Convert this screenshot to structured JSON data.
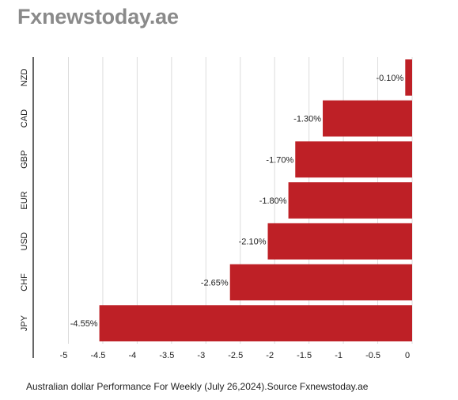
{
  "header": {
    "brand": "Fxnewstoday.ae"
  },
  "caption": "Australian dollar Performance For Weekly (July 26,2024).Source Fxnewstoday.ae",
  "colors": {
    "bar": "#be2026",
    "grid": "#dcdcdc",
    "axis": "#333333",
    "text": "#222222"
  },
  "chart_data": {
    "type": "bar",
    "orientation": "horizontal",
    "categories": [
      "NZD",
      "CAD",
      "GBP",
      "EUR",
      "USD",
      "CHF",
      "JPY"
    ],
    "values": [
      -0.1,
      -1.3,
      -1.7,
      -1.8,
      -2.1,
      -2.65,
      -4.55
    ],
    "data_labels": [
      "-0.10%",
      "-1.30%",
      "-1.70%",
      "-1.80%",
      "-2.10%",
      "-2.65%",
      "-4.55%"
    ],
    "x_ticks": [
      -5,
      -4.5,
      -4,
      -3.5,
      -3,
      -2.5,
      -2,
      -1.5,
      -1,
      -0.5,
      0
    ],
    "x_tick_labels": [
      "-5",
      "-4.5",
      "-4",
      "-3.5",
      "-3",
      "-2.5",
      "-2",
      "-1.5",
      "-1",
      "-0.5",
      "0"
    ],
    "xlim": [
      -5,
      0
    ],
    "grid": true,
    "legend": "none"
  }
}
